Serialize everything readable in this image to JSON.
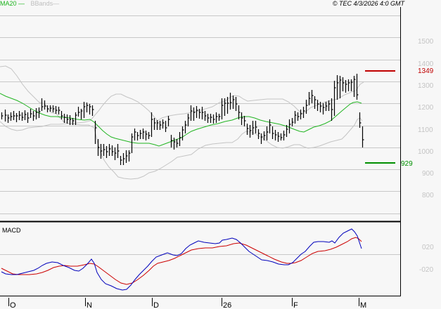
{
  "header": {
    "legend": [
      {
        "label": "MA20",
        "color": "#1bb31b"
      },
      {
        "label": "BBands",
        "color": "#bdbdbd"
      }
    ],
    "copyright": "© TEC 4/3/2026 4:0 GMT"
  },
  "chart_data": [
    {
      "type": "ohlc",
      "title": "Price (bar chart) with MA20 and Bollinger Bands",
      "y_axis": {
        "ticks": [
          "1500",
          "1400",
          "1300",
          "1200",
          "1100",
          "1000",
          "900",
          "800"
        ],
        "range": [
          730,
          1560
        ]
      },
      "x_axis": {
        "ticks": [
          "O",
          "N",
          "D",
          "26",
          "F",
          "M"
        ]
      },
      "markers": {
        "resistance": {
          "value": "1349",
          "color": "#c00000"
        },
        "support": {
          "value": "929",
          "color": "#008f00"
        }
      },
      "series": [
        {
          "name": "MA20",
          "color": "#1bb31b",
          "approx_values": [
            1255,
            1225,
            1195,
            1175,
            1170,
            1165,
            1155,
            1060,
            1020,
            1070,
            1100,
            1135,
            1160,
            1170,
            1145,
            1110,
            1125,
            1200,
            1225
          ]
        },
        {
          "name": "BBands upper",
          "color": "#bdbdbd",
          "approx_values": [
            1365,
            1330,
            1210,
            1220,
            1285,
            1250,
            1150,
            1190,
            1215,
            1260,
            1245,
            1240,
            1195,
            1260,
            1330,
            1345
          ]
        },
        {
          "name": "BBands lower",
          "color": "#bdbdbd",
          "approx_values": [
            1150,
            1130,
            1090,
            1000,
            940,
            960,
            1055,
            1060,
            1080,
            1030,
            1035,
            1040,
            1110
          ]
        },
        {
          "name": "Price close (approx)",
          "approx_values": [
            1180,
            1150,
            1160,
            1185,
            1160,
            1110,
            1165,
            1080,
            990,
            960,
            950,
            1070,
            1100,
            1170,
            1140,
            1200,
            1230,
            1120,
            1080,
            1060,
            1090,
            1140,
            1190,
            1170,
            1250,
            1300,
            1310,
            1230,
            1040
          ]
        }
      ],
      "ylim": [
        730,
        1560
      ]
    },
    {
      "type": "line",
      "title": "MACD",
      "y_axis": {
        "ticks": [
          "020",
          "-020"
        ]
      },
      "x_axis": {
        "ticks": [
          "O",
          "N",
          "D",
          "26",
          "F",
          "M"
        ]
      },
      "series": [
        {
          "name": "MACD",
          "color": "#0000cc"
        },
        {
          "name": "Signal",
          "color": "#cc0000"
        }
      ]
    }
  ],
  "macd_panel": {
    "label": "MACD",
    "ticks": [
      "020",
      "-020"
    ]
  },
  "price_panel": {
    "ticks": [
      "1500",
      "1400",
      "1300",
      "1200",
      "1100",
      "1000",
      "900",
      "800"
    ],
    "resistance_label": "1349",
    "support_label": "929"
  },
  "x_axis": {
    "labels": [
      "O",
      "N",
      "D",
      "26",
      "F",
      "M"
    ]
  }
}
